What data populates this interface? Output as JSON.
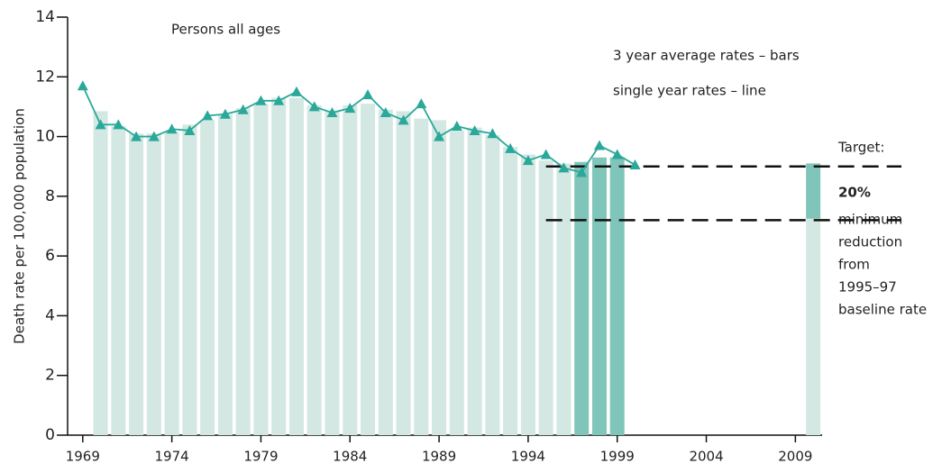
{
  "chart_data": {
    "type": "bar-line",
    "y_label": "Death rate per 100,000 population",
    "xlim": [
      1968.15,
      2010.5
    ],
    "xticks": [
      1969,
      1974,
      1979,
      1984,
      1989,
      1994,
      1999,
      2004,
      2009
    ],
    "ylim": [
      0,
      14
    ],
    "yticks": [
      0,
      2,
      4,
      6,
      8,
      10,
      12,
      14
    ],
    "bars": {
      "x": [
        1970,
        1971,
        1972,
        1973,
        1974,
        1975,
        1976,
        1977,
        1978,
        1979,
        1980,
        1981,
        1982,
        1983,
        1984,
        1985,
        1986,
        1987,
        1988,
        1989,
        1990,
        1991,
        1992,
        1993,
        1994,
        1995,
        1996,
        1997,
        1998,
        1999
      ],
      "values": [
        10.85,
        10.35,
        10.1,
        10.1,
        10.15,
        10.4,
        10.55,
        10.75,
        10.95,
        11.1,
        11.3,
        11.3,
        11.05,
        10.85,
        11.05,
        11.1,
        10.9,
        10.85,
        10.6,
        10.55,
        10.2,
        10.3,
        10.05,
        9.65,
        9.4,
        9.2,
        9.1,
        9.15,
        9.3,
        9.3
      ],
      "color": "#d3e8e2",
      "highlight_years": [
        1997,
        1998,
        1999
      ],
      "highlight_color": "#80c5b9"
    },
    "line": {
      "x": [
        1969,
        1970,
        1971,
        1972,
        1973,
        1974,
        1975,
        1976,
        1977,
        1978,
        1979,
        1980,
        1981,
        1982,
        1983,
        1984,
        1985,
        1986,
        1987,
        1988,
        1989,
        1990,
        1991,
        1992,
        1993,
        1994,
        1995,
        1996,
        1997,
        1998,
        1999,
        2000
      ],
      "values": [
        11.7,
        10.4,
        10.4,
        10.0,
        10.0,
        10.25,
        10.2,
        10.7,
        10.75,
        10.9,
        11.2,
        11.2,
        11.5,
        11.0,
        10.8,
        10.95,
        11.4,
        10.8,
        10.55,
        11.1,
        10.0,
        10.35,
        10.2,
        10.1,
        9.6,
        9.2,
        9.4,
        8.95,
        8.8,
        9.7,
        9.4,
        9.05
      ],
      "color": "#2aa89a"
    },
    "target_bar": {
      "x": 2010,
      "baseline": 9.1,
      "target": 7.25
    },
    "reference_lines": {
      "from_x": 1995,
      "values": [
        9.0,
        7.2
      ]
    },
    "annotations": [
      "Persons all ages",
      "3 year average rates – bars",
      "single year rates – line"
    ],
    "target_note": {
      "title": "Target:",
      "percent": "20%",
      "lines": [
        "minimum",
        "reduction",
        "from",
        "1995–97",
        "baseline rate"
      ]
    }
  }
}
